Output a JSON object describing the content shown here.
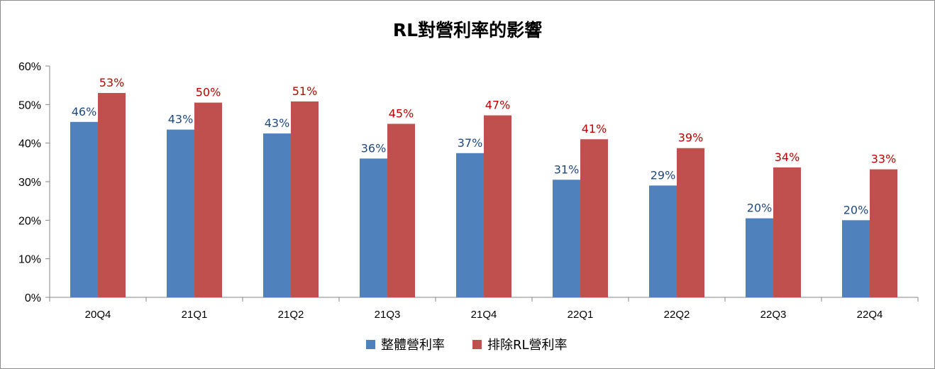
{
  "chart_data": {
    "type": "bar",
    "title": "RL對營利率的影響",
    "categories": [
      "20Q4",
      "21Q1",
      "21Q2",
      "21Q3",
      "21Q4",
      "22Q1",
      "22Q2",
      "22Q3",
      "22Q4"
    ],
    "series": [
      {
        "name": "整體營利率",
        "color": "#4F81BD",
        "label_color": "#1F497D",
        "values": [
          0.455,
          0.435,
          0.425,
          0.36,
          0.374,
          0.305,
          0.29,
          0.205,
          0.2
        ],
        "labels": [
          "46%",
          "43%",
          "43%",
          "36%",
          "37%",
          "31%",
          "29%",
          "20%",
          "20%"
        ]
      },
      {
        "name": "排除RL營利率",
        "color": "#C0504D",
        "label_color": "#C00000",
        "values": [
          0.53,
          0.505,
          0.508,
          0.45,
          0.472,
          0.41,
          0.387,
          0.337,
          0.332
        ],
        "labels": [
          "53%",
          "50%",
          "51%",
          "45%",
          "47%",
          "41%",
          "39%",
          "34%",
          "33%"
        ]
      }
    ],
    "ylim": [
      0,
      0.6
    ],
    "yticks": [
      "0%",
      "10%",
      "20%",
      "30%",
      "40%",
      "50%",
      "60%"
    ],
    "grid": false,
    "legend_position": "bottom"
  }
}
